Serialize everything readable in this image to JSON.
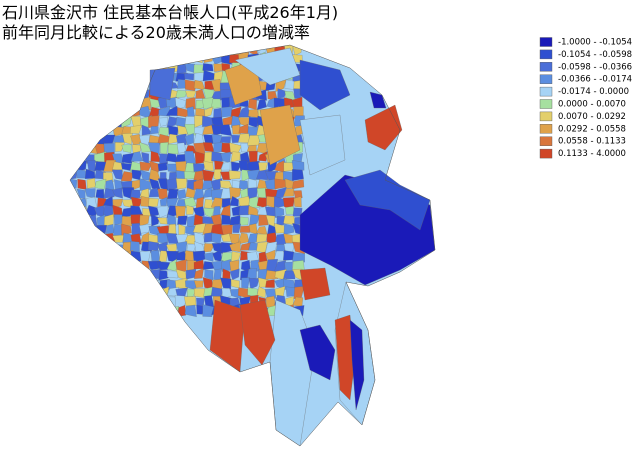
{
  "title": [
    "石川県金沢市 住民基本台帳人口(平成26年1月)",
    "前年同月比較による20歳未満人口の増減率"
  ],
  "legend": [
    {
      "label": "-1.0000 - -0.1054",
      "color": "#1a1ab8"
    },
    {
      "label": "-0.1054 - -0.0598",
      "color": "#2f4fd0"
    },
    {
      "label": "-0.0598 - -0.0366",
      "color": "#4a6ed8"
    },
    {
      "label": "-0.0366 - -0.0174",
      "color": "#5b8ee0"
    },
    {
      "label": "-0.0174 - 0.0000",
      "color": "#a6d3f5"
    },
    {
      "label": "0.0000 - 0.0070",
      "color": "#a6e0a0"
    },
    {
      "label": "0.0070 - 0.0292",
      "color": "#e3cf6b"
    },
    {
      "label": "0.0292 - 0.0558",
      "color": "#dfa24a"
    },
    {
      "label": "0.0558 - 0.1133",
      "color": "#d9763c"
    },
    {
      "label": "0.1133 - 4.0000",
      "color": "#d04628"
    }
  ]
}
